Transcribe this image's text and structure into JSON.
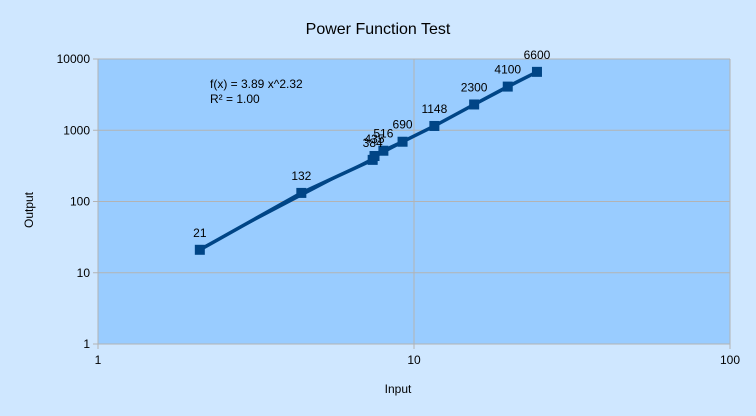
{
  "chart_data": {
    "type": "scatter",
    "title": "Power Function Test",
    "xlabel": "Input",
    "ylabel": "Output",
    "x_scale": "log",
    "y_scale": "log",
    "xlim": [
      1,
      100
    ],
    "ylim": [
      1,
      10000
    ],
    "x_ticks": [
      "1",
      "10",
      "100"
    ],
    "y_ticks": [
      "1",
      "10",
      "100",
      "1000",
      "10000"
    ],
    "grid": true,
    "trendline": {
      "equation": "f(x) = 3.89 x^2.32",
      "r_squared": "R² = 1.00",
      "a": 3.89,
      "b": 2.32
    },
    "series": [
      {
        "x": [
          2.1,
          4.4,
          7.4,
          7.5,
          8.0,
          9.2,
          11.6,
          15.5,
          19.8,
          24.5
        ],
        "y": [
          21,
          132,
          384,
          435,
          516,
          690,
          1148,
          2300,
          4100,
          6600
        ],
        "labels": [
          "21",
          "132",
          "384",
          "435",
          "516",
          "690",
          "1148",
          "2300",
          "4100",
          "6600"
        ]
      }
    ],
    "colors": {
      "page_background": "#cfe7ff",
      "plot_background": "#99ccff",
      "gridline": "#b3b3b3",
      "series": "#004586"
    }
  }
}
